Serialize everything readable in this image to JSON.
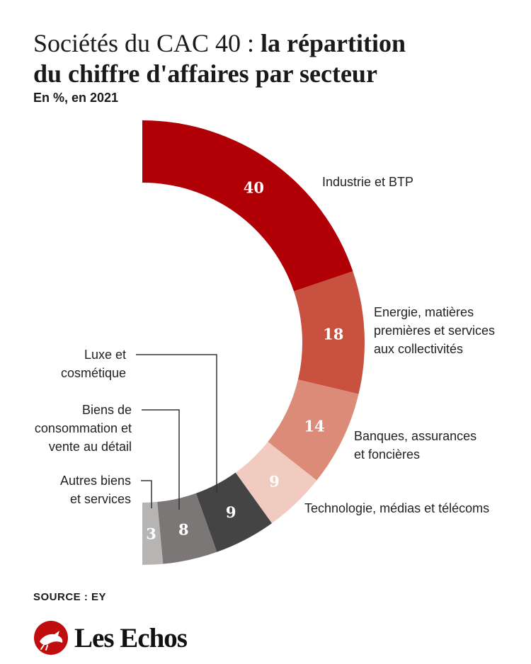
{
  "header": {
    "title_light": "Sociétés du CAC 40 : ",
    "title_bold_line1": "la répartition",
    "title_bold_line2": "du chiffre d'affaires par secteur",
    "subtitle": "En %, en 2021"
  },
  "chart_data": {
    "type": "pie",
    "variant": "half-donut",
    "title": "Sociétés du CAC 40 : la répartition du chiffre d'affaires par secteur",
    "subtitle": "En %, en 2021",
    "unit": "%",
    "slices": [
      {
        "label": "Industrie et BTP",
        "value": 40,
        "color": "#b00006",
        "text_color": "#ffffff",
        "label_lines": [
          "Industrie et BTP"
        ]
      },
      {
        "label": "Energie, matières premières et services aux collectivités",
        "value": 18,
        "color": "#c8523f",
        "text_color": "#ffffff",
        "label_lines": [
          "Energie, matières",
          "premières et services",
          "aux collectivités"
        ]
      },
      {
        "label": "Banques, assurances et foncières",
        "value": 14,
        "color": "#dc8b78",
        "text_color": "#ffffff",
        "label_lines": [
          "Banques, assurances",
          "et foncières"
        ]
      },
      {
        "label": "Technologie, médias et télécoms",
        "value": 9,
        "color": "#f1cbbf",
        "text_color": "#ffffff",
        "label_lines": [
          "Technologie, médias et télécoms"
        ]
      },
      {
        "label": "Luxe et cosmétique",
        "value": 9,
        "color": "#444444",
        "text_color": "#ffffff",
        "label_lines": [
          "Luxe et",
          "cosmétique"
        ]
      },
      {
        "label": "Biens de consommation et vente au détail",
        "value": 8,
        "color": "#7b7777",
        "text_color": "#ffffff",
        "label_lines": [
          "Biens de",
          "consommation et",
          "vente au détail"
        ]
      },
      {
        "label": "Autres biens et services",
        "value": 3,
        "color": "#b7b4b4",
        "text_color": "#ffffff",
        "label_lines": [
          "Autres biens",
          "et services"
        ]
      }
    ]
  },
  "footer": {
    "source": "SOURCE : EY",
    "brand": "Les Echos"
  },
  "colors": {
    "brand_red": "#c00d0d"
  },
  "icons": {
    "logo": "les-echos-rooster-logo-icon"
  }
}
